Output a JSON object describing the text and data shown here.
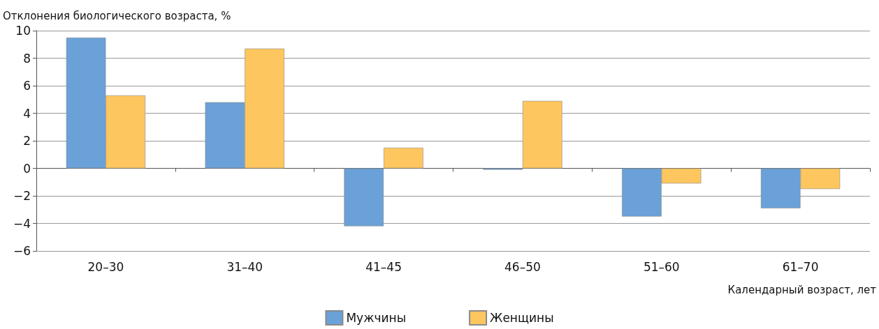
{
  "chart_data": {
    "type": "bar",
    "ylabel": "Отклонения биологического возраста, %",
    "xlabel": "Календарный возраст, лет",
    "categories": [
      "20–30",
      "31–40",
      "41–45",
      "46–50",
      "51–60",
      "61–70"
    ],
    "series": [
      {
        "name": "Мужчины",
        "color": "#6aa1d8",
        "values": [
          9.5,
          4.8,
          -4.2,
          -0.1,
          -3.5,
          -2.9
        ]
      },
      {
        "name": "Женщины",
        "color": "#fec65e",
        "values": [
          5.3,
          8.7,
          1.5,
          4.9,
          -1.1,
          -1.5
        ]
      }
    ],
    "ylim": [
      -6,
      10
    ],
    "yticks": [
      -6,
      -4,
      -2,
      0,
      2,
      4,
      6,
      8,
      10
    ],
    "grid": "y",
    "legend": "bottom"
  }
}
